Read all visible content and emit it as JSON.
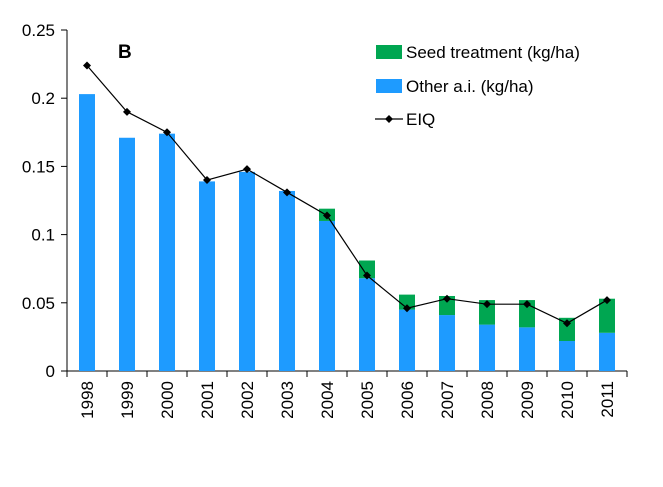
{
  "chart_data": {
    "type": "bar",
    "panel_label": "B",
    "categories": [
      "1998",
      "1999",
      "2000",
      "2001",
      "2002",
      "2003",
      "2004",
      "2005",
      "2006",
      "2007",
      "2008",
      "2009",
      "2010",
      "2011"
    ],
    "series": [
      {
        "name": "Other a.i. (kg/ha)",
        "kind": "stacked-bar",
        "color": "#1E9BFF",
        "values": [
          0.203,
          0.171,
          0.174,
          0.139,
          0.146,
          0.132,
          0.11,
          0.068,
          0.045,
          0.041,
          0.034,
          0.032,
          0.022,
          0.028
        ]
      },
      {
        "name": "Seed treatment (kg/ha)",
        "kind": "stacked-bar",
        "color": "#00A651",
        "values": [
          0.0,
          0.0,
          0.0,
          0.0,
          0.0,
          0.0,
          0.009,
          0.013,
          0.011,
          0.014,
          0.018,
          0.02,
          0.017,
          0.025
        ]
      },
      {
        "name": "EIQ",
        "kind": "line",
        "color": "#000000",
        "values": [
          0.224,
          0.19,
          0.175,
          0.14,
          0.148,
          0.131,
          0.114,
          0.07,
          0.046,
          0.053,
          0.049,
          0.049,
          0.035,
          0.052
        ]
      }
    ],
    "ylim": [
      0,
      0.25
    ],
    "yticks": [
      "0",
      "0.05",
      "0.1",
      "0.15",
      "0.2",
      "0.25"
    ],
    "ytick_values": [
      0,
      0.05,
      0.1,
      0.15,
      0.2,
      0.25
    ],
    "legend_position": "top-right",
    "grid": false
  }
}
